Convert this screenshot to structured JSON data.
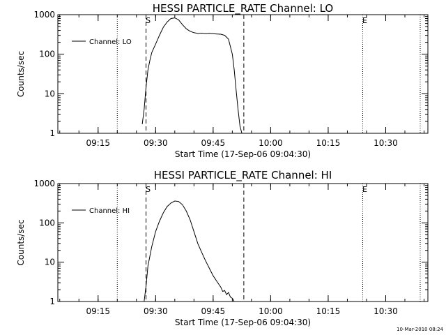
{
  "footer": {
    "timestamp": "10-Mar-2010 08:24"
  },
  "chart_data": [
    {
      "type": "line",
      "title": "HESSI PARTICLE_RATE Channel: LO",
      "xlabel": "Start Time (17-Sep-06 09:04:30)",
      "ylabel": "Counts/sec",
      "y_scale": "log",
      "ylim": [
        1,
        1000
      ],
      "xlim": [
        "09:04:30",
        "10:41:00"
      ],
      "x_ticks": [
        "09:15",
        "09:30",
        "09:45",
        "10:00",
        "10:15",
        "10:30"
      ],
      "y_ticks": [
        "1",
        "10",
        "100",
        "1000"
      ],
      "grid": false,
      "legend": {
        "position": "upper-left",
        "entries": [
          "Channel: LO"
        ]
      },
      "markers": [
        {
          "time": "09:20:00",
          "style": "dotted",
          "label": ""
        },
        {
          "time": "09:27:30",
          "style": "dashed",
          "label": "S"
        },
        {
          "time": "09:53:00",
          "style": "dashed",
          "label": ""
        },
        {
          "time": "10:24:00",
          "style": "dotted",
          "label": "E"
        },
        {
          "time": "10:39:00",
          "style": "dotted",
          "label": ""
        }
      ],
      "series": [
        {
          "name": "Channel: LO",
          "x": [
            "09:26:30",
            "09:27:00",
            "09:27:30",
            "09:28:00",
            "09:28:30",
            "09:29:00",
            "09:30:00",
            "09:31:00",
            "09:32:00",
            "09:33:00",
            "09:34:00",
            "09:35:00",
            "09:36:00",
            "09:37:00",
            "09:38:00",
            "09:39:00",
            "09:40:00",
            "09:41:00",
            "09:42:00",
            "09:43:00",
            "09:44:00",
            "09:45:00",
            "09:46:00",
            "09:47:00",
            "09:48:00",
            "09:49:00",
            "09:50:00",
            "09:50:30",
            "09:51:00",
            "09:51:30",
            "09:52:00",
            "09:52:30"
          ],
          "y": [
            1.7,
            4,
            15,
            40,
            70,
            110,
            180,
            300,
            480,
            650,
            800,
            830,
            740,
            560,
            440,
            380,
            350,
            335,
            340,
            330,
            335,
            330,
            325,
            320,
            300,
            240,
            100,
            40,
            12,
            4,
            1.5,
            1
          ]
        }
      ]
    },
    {
      "type": "line",
      "title": "HESSI PARTICLE_RATE Channel: HI",
      "xlabel": "Start Time (17-Sep-06 09:04:30)",
      "ylabel": "Counts/sec",
      "y_scale": "log",
      "ylim": [
        1,
        1000
      ],
      "xlim": [
        "09:04:30",
        "10:41:00"
      ],
      "x_ticks": [
        "09:15",
        "09:30",
        "09:45",
        "10:00",
        "10:15",
        "10:30"
      ],
      "y_ticks": [
        "1",
        "10",
        "100",
        "1000"
      ],
      "grid": false,
      "legend": {
        "position": "upper-left",
        "entries": [
          "Channel: HI"
        ]
      },
      "markers": [
        {
          "time": "09:20:00",
          "style": "dotted",
          "label": ""
        },
        {
          "time": "09:27:30",
          "style": "dashed",
          "label": "S"
        },
        {
          "time": "09:53:00",
          "style": "dashed",
          "label": ""
        },
        {
          "time": "10:24:00",
          "style": "dotted",
          "label": "E"
        },
        {
          "time": "10:39:00",
          "style": "dotted",
          "label": ""
        }
      ],
      "series": [
        {
          "name": "Channel: HI",
          "x": [
            "09:27:00",
            "09:27:30",
            "09:28:00",
            "09:29:00",
            "09:30:00",
            "09:31:00",
            "09:32:00",
            "09:33:00",
            "09:34:00",
            "09:35:00",
            "09:36:00",
            "09:37:00",
            "09:38:00",
            "09:39:00",
            "09:40:00",
            "09:41:00",
            "09:42:00",
            "09:43:00",
            "09:44:00",
            "09:45:00",
            "09:46:00",
            "09:47:00",
            "09:47:30",
            "09:48:00",
            "09:48:30",
            "09:49:00",
            "09:49:30",
            "09:50:00",
            "09:50:30"
          ],
          "y": [
            1,
            2.5,
            8,
            25,
            60,
            110,
            180,
            260,
            320,
            360,
            350,
            290,
            200,
            120,
            60,
            30,
            18,
            11,
            7,
            4.5,
            3.2,
            2.3,
            1.8,
            1.9,
            1.5,
            1.7,
            1.3,
            1.2,
            1
          ]
        }
      ]
    }
  ]
}
